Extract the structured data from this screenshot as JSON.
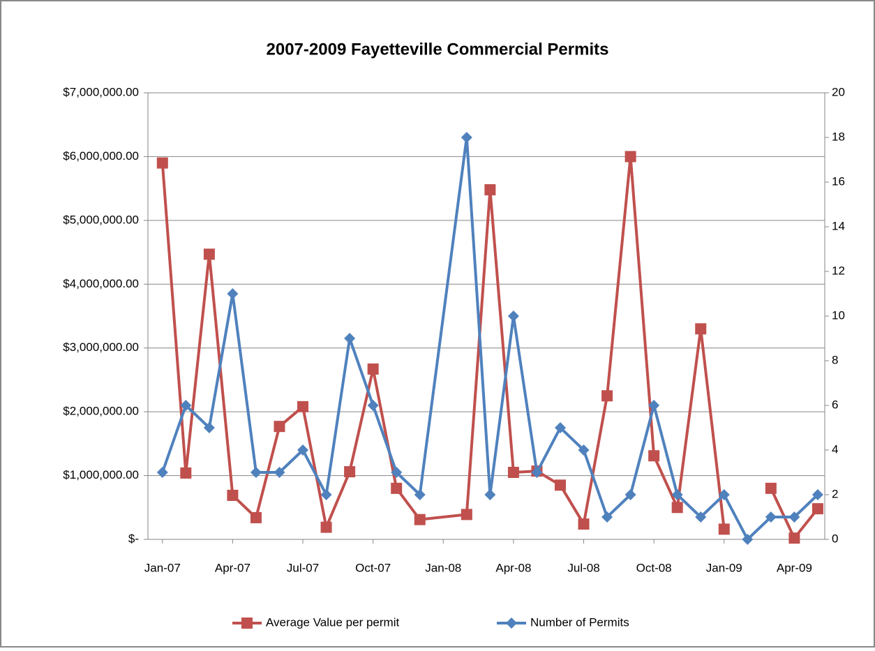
{
  "chart_data": {
    "type": "line",
    "title": "2007-2009 Fayetteville Commercial Permits",
    "x": [
      "2007-01",
      "2007-02",
      "2007-03",
      "2007-04",
      "2007-05",
      "2007-06",
      "2007-07",
      "2007-08",
      "2007-09",
      "2007-10",
      "2007-11",
      "2007-12",
      "2008-02",
      "2008-03",
      "2008-04",
      "2008-05",
      "2008-06",
      "2008-07",
      "2008-08",
      "2008-09",
      "2008-10",
      "2008-11",
      "2008-12",
      "2009-01",
      "2009-02",
      "2009-03",
      "2009-04",
      "2009-05"
    ],
    "series": [
      {
        "name": "Average Value per permit",
        "color": "#c0504d",
        "marker": "square",
        "values": [
          5900000,
          1040000,
          4470000,
          690000,
          340000,
          1770000,
          2080000,
          190000,
          1060000,
          2670000,
          800000,
          310000,
          390000,
          5480000,
          1050000,
          1070000,
          850000,
          240000,
          2250000,
          6000000,
          1310000,
          500000,
          3300000,
          160000,
          null,
          800000,
          20000,
          480000
        ]
      },
      {
        "name": "Number of Permits",
        "color": "#4f81bd",
        "marker": "diamond",
        "axis": "y2",
        "values": [
          3,
          6,
          5,
          11,
          3,
          3,
          4,
          2,
          9,
          6,
          3,
          2,
          18,
          2,
          10,
          3,
          5,
          4,
          1,
          2,
          6,
          2,
          1,
          2,
          0,
          1,
          1,
          2
        ]
      }
    ],
    "xticks": [
      {
        "value": "2007-01",
        "label": "Jan-07"
      },
      {
        "value": "2007-04",
        "label": "Apr-07"
      },
      {
        "value": "2007-07",
        "label": "Jul-07"
      },
      {
        "value": "2007-10",
        "label": "Oct-07"
      },
      {
        "value": "2008-01",
        "label": "Jan-08"
      },
      {
        "value": "2008-04",
        "label": "Apr-08"
      },
      {
        "value": "2008-07",
        "label": "Jul-08"
      },
      {
        "value": "2008-10",
        "label": "Oct-08"
      },
      {
        "value": "2009-01",
        "label": "Jan-09"
      },
      {
        "value": "2009-04",
        "label": "Apr-09"
      }
    ],
    "ylim": [
      0,
      7000000
    ],
    "yticks": [
      {
        "value": 0,
        "label": "$-"
      },
      {
        "value": 1000000,
        "label": "$1,000,000.00"
      },
      {
        "value": 2000000,
        "label": "$2,000,000.00"
      },
      {
        "value": 3000000,
        "label": "$3,000,000.00"
      },
      {
        "value": 4000000,
        "label": "$4,000,000.00"
      },
      {
        "value": 5000000,
        "label": "$5,000,000.00"
      },
      {
        "value": 6000000,
        "label": "$6,000,000.00"
      },
      {
        "value": 7000000,
        "label": "$7,000,000.00"
      }
    ],
    "y2lim": [
      0,
      20
    ],
    "y2ticks": [
      0,
      2,
      4,
      6,
      8,
      10,
      12,
      14,
      16,
      18,
      20
    ],
    "grid": true,
    "legend": "bottom"
  }
}
